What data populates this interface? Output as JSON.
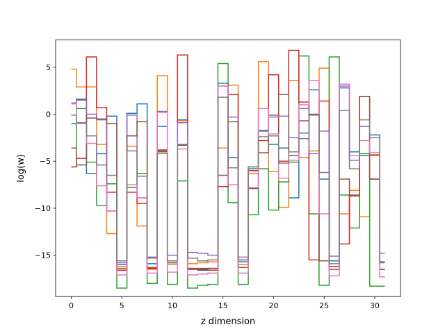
{
  "chart_data": {
    "type": "line",
    "drawstyle": "steps-mid",
    "title": "",
    "xlabel": "z dimension",
    "ylabel": "log(w)",
    "xlim": [
      -1.55,
      32.55
    ],
    "ylim": [
      -19.4,
      7.9
    ],
    "xticks": [
      0,
      5,
      10,
      15,
      20,
      25,
      30
    ],
    "yticks": [
      -15,
      -10,
      -5,
      0,
      5
    ],
    "ytick_labels": [
      "−15",
      "−10",
      "−5",
      "0",
      "5"
    ],
    "grid": false,
    "legend": "none",
    "x": [
      0,
      1,
      2,
      3,
      4,
      5,
      6,
      7,
      8,
      9,
      10,
      11,
      12,
      13,
      14,
      15,
      16,
      17,
      18,
      19,
      20,
      21,
      22,
      23,
      24,
      25,
      26,
      27,
      28,
      29,
      30,
      31
    ],
    "series": [
      {
        "color": "#1f77b4",
        "values": [
          -1.0,
          1.6,
          -6.3,
          -4.2,
          -0.2,
          -16.0,
          0.1,
          1.1,
          -15.9,
          -1.3,
          -15.8,
          -0.6,
          -16.4,
          -16.6,
          -16.4,
          3.3,
          -4.6,
          -15.7,
          -5.8,
          -1.8,
          -3.2,
          -3.6,
          -8.9,
          -2.0,
          2.6,
          -6.9,
          -15.6,
          2.8,
          -4.0,
          -4.4,
          -2.2,
          -15.7
        ]
      },
      {
        "color": "#ff7f0e",
        "values": [
          4.8,
          2.9,
          2.9,
          -3.2,
          -12.7,
          -16.2,
          -3.4,
          -11.9,
          -16.5,
          4.1,
          -16.0,
          -0.7,
          -15.9,
          -15.8,
          -15.7,
          -3.6,
          3.1,
          -16.0,
          -6.3,
          5.6,
          -6.1,
          -9.9,
          3.6,
          -4.6,
          -3.9,
          4.9,
          -16.2,
          -10.6,
          -8.1,
          -10.9,
          -4.3,
          -16.5
        ]
      },
      {
        "color": "#2ca02c",
        "values": [
          -5.6,
          0.6,
          -5.1,
          -9.7,
          -7.4,
          -18.5,
          -7.8,
          -6.3,
          -18.0,
          -3.9,
          -18.1,
          -7.1,
          -18.5,
          -18.2,
          -18.1,
          5.4,
          -9.4,
          -18.1,
          -10.7,
          -5.8,
          -10.2,
          -7.2,
          -5.1,
          6.2,
          -10.6,
          -18.2,
          6.1,
          -8.6,
          -12.1,
          -4.2,
          -18.3,
          -18.3
        ]
      },
      {
        "color": "#d62728",
        "values": [
          -5.6,
          -4.7,
          6.1,
          0.7,
          -8.3,
          -16.6,
          -8.3,
          -9.5,
          -16.4,
          -3.8,
          -15.6,
          6.3,
          -16.5,
          -16.5,
          -16.4,
          -7.7,
          2.1,
          -15.5,
          -6.0,
          -2.8,
          4.2,
          -5.0,
          6.8,
          1.3,
          -15.5,
          1.4,
          -16.5,
          -13.8,
          -8.6,
          1.9,
          -6.9,
          -16.5
        ]
      },
      {
        "color": "#9467bd",
        "values": [
          1.2,
          1.5,
          0.0,
          -0.6,
          -10.3,
          -15.8,
          -0.1,
          -8.9,
          -15.2,
          0.3,
          -15.0,
          -0.9,
          -14.7,
          -14.8,
          -15.0,
          3.0,
          -0.3,
          -15.2,
          -5.6,
          -1.7,
          -0.3,
          -0.2,
          -2.5,
          0.6,
          -4.2,
          -1.8,
          -15.1,
          3.0,
          -4.9,
          -1.3,
          -4.4,
          -14.8
        ]
      },
      {
        "color": "#8c564b",
        "values": [
          -3.6,
          -5.4,
          -0.4,
          -0.5,
          -1.0,
          -16.4,
          -2.3,
          -0.8,
          -16.3,
          -4.0,
          -15.8,
          -3.3,
          -16.4,
          -16.4,
          -16.6,
          -6.5,
          -0.8,
          -16.3,
          -7.9,
          -4.1,
          -0.1,
          2.1,
          -4.4,
          -0.7,
          0.0,
          -15.6,
          -16.2,
          -6.9,
          -8.7,
          1.9,
          -6.9,
          -16.5
        ]
      },
      {
        "color": "#e377c2",
        "values": [
          1.1,
          -1.0,
          -3.1,
          -7.6,
          -10.3,
          -17.1,
          -7.5,
          -8.9,
          -16.9,
          0.2,
          -16.8,
          -3.7,
          -17.1,
          -17.0,
          -16.9,
          3.0,
          -7.5,
          -16.9,
          -7.8,
          0.6,
          -2.1,
          -6.8,
          -4.9,
          1.0,
          3.6,
          -10.6,
          -17.2,
          3.2,
          -4.4,
          -2.8,
          -4.1,
          -17.3
        ]
      },
      {
        "color": "#7f7f7f",
        "values": [
          -0.1,
          -0.9,
          -2.3,
          -5.4,
          -6.5,
          -15.6,
          -3.9,
          -6.6,
          -15.3,
          -4.2,
          -15.6,
          -3.2,
          -15.3,
          -15.6,
          -15.5,
          1.8,
          -5.7,
          -15.5,
          -5.6,
          -2.4,
          -2.3,
          -5.2,
          -4.0,
          -2.6,
          -0.1,
          -6.2,
          -15.9,
          0.4,
          -5.8,
          -0.6,
          -2.5,
          -15.8
        ]
      }
    ]
  }
}
